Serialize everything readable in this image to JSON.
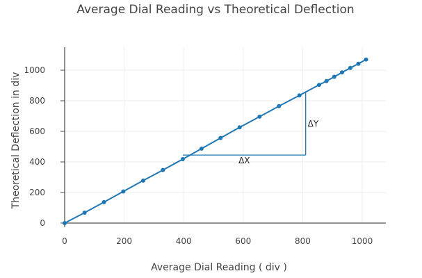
{
  "chart_data": {
    "type": "line",
    "title": "Average Dial Reading vs Theoretical Deflection",
    "xlabel": "Average Dial Reading ( div )",
    "ylabel": "Theoretical Deflection in div",
    "xlim": [
      -15,
      1030
    ],
    "ylim": [
      -30,
      1150
    ],
    "x_ticks": [
      0,
      200,
      400,
      600,
      800,
      1000
    ],
    "y_ticks": [
      0,
      200,
      400,
      600,
      800,
      1000
    ],
    "grid": true,
    "series": [
      {
        "color": "#1f77b4",
        "x": [
          0,
          67,
          132,
          197,
          264,
          330,
          397,
          460,
          524,
          588,
          655,
          720,
          789,
          855,
          880,
          906,
          932,
          960,
          987,
          1013
        ],
        "y": [
          0,
          68,
          137,
          207,
          278,
          347,
          418,
          487,
          557,
          626,
          696,
          765,
          835,
          904,
          929,
          957,
          985,
          1015,
          1042,
          1070
        ]
      }
    ],
    "annotations": {
      "dx_label": "ΔX",
      "dy_label": "ΔY",
      "triangle": {
        "x_start": 397,
        "x_end": 810,
        "y_base": 445,
        "y_top": 855
      }
    }
  }
}
